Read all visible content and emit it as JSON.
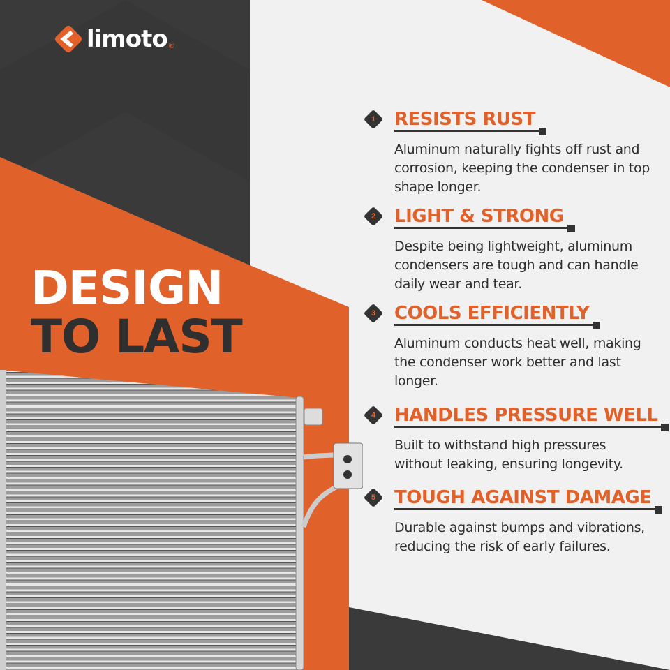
{
  "brand": {
    "name": "limoto",
    "registered": "®",
    "color": "#e3612b"
  },
  "headline": {
    "line1": "DESIGN",
    "line2": "TO LAST"
  },
  "colors": {
    "orange": "#e0612a",
    "dark": "#3a3a3a",
    "light": "#f1f1f1"
  },
  "features": [
    {
      "number": "1",
      "title": "RESISTS RUST",
      "description": "Aluminum naturally fights off rust and corrosion, keeping the condenser in top shape longer."
    },
    {
      "number": "2",
      "title": "LIGHT & STRONG",
      "description": "Despite being lightweight, aluminum condensers are tough and can handle daily wear and tear."
    },
    {
      "number": "3",
      "title": "COOLS EFFICIENTLY",
      "description": "Aluminum conducts heat well, making the condenser work better and last longer."
    },
    {
      "number": "4",
      "title": "HANDLES PRESSURE WELL",
      "description": "Built to withstand high pressures without leaking, ensuring longevity."
    },
    {
      "number": "5",
      "title": "TOUGH AGAINST DAMAGE",
      "description": "Durable against bumps and vibrations, reducing the risk of early failures."
    }
  ],
  "product_image": "ac-condenser"
}
